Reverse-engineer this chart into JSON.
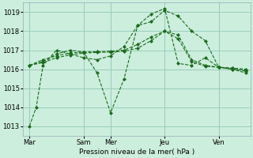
{
  "background_color": "#cceedd",
  "grid_color": "#99ccbb",
  "line_color": "#1a6b1a",
  "xlabel": "Pression niveau de la mer( hPa )",
  "ylim": [
    1012.5,
    1019.5
  ],
  "yticks": [
    1013,
    1014,
    1015,
    1016,
    1017,
    1018,
    1019
  ],
  "xtick_labels": [
    "Mar",
    "Sam",
    "Mer",
    "Jeu",
    "Ven"
  ],
  "xtick_positions": [
    0,
    48,
    72,
    120,
    168
  ],
  "xlim": [
    -6,
    196
  ],
  "series1_x": [
    0,
    6,
    12,
    24,
    36,
    48,
    60,
    72,
    84,
    96,
    108,
    120,
    132,
    144,
    156,
    168,
    180,
    192
  ],
  "series1_y": [
    1013.0,
    1014.0,
    1016.2,
    1017.0,
    1016.8,
    1016.6,
    1016.5,
    1016.7,
    1017.2,
    1018.3,
    1018.5,
    1019.1,
    1018.8,
    1018.0,
    1017.5,
    1016.1,
    1016.0,
    1015.9
  ],
  "series2_x": [
    0,
    12,
    24,
    36,
    48,
    60,
    72,
    84,
    96,
    108,
    120,
    132,
    144,
    156,
    168,
    180,
    192
  ],
  "series2_y": [
    1016.2,
    1016.4,
    1016.8,
    1017.0,
    1016.9,
    1015.8,
    1013.7,
    1015.5,
    1018.3,
    1018.9,
    1019.2,
    1016.3,
    1016.2,
    1016.6,
    1016.1,
    1016.0,
    1015.8
  ],
  "series3_x": [
    0,
    12,
    24,
    36,
    48,
    60,
    72,
    84,
    96,
    108,
    120,
    132,
    144,
    156,
    168,
    180,
    192
  ],
  "series3_y": [
    1016.2,
    1016.5,
    1016.7,
    1016.85,
    1016.9,
    1016.92,
    1016.95,
    1017.0,
    1017.3,
    1017.7,
    1018.0,
    1017.8,
    1016.5,
    1016.2,
    1016.1,
    1016.05,
    1015.95
  ],
  "series4_x": [
    0,
    12,
    24,
    36,
    48,
    60,
    72,
    84,
    96,
    108,
    120,
    132,
    144,
    156,
    168,
    180,
    192
  ],
  "series4_y": [
    1016.2,
    1016.35,
    1016.6,
    1016.75,
    1016.85,
    1016.88,
    1016.9,
    1016.95,
    1017.1,
    1017.5,
    1018.0,
    1017.6,
    1016.4,
    1016.15,
    1016.1,
    1016.05,
    1016.0
  ]
}
